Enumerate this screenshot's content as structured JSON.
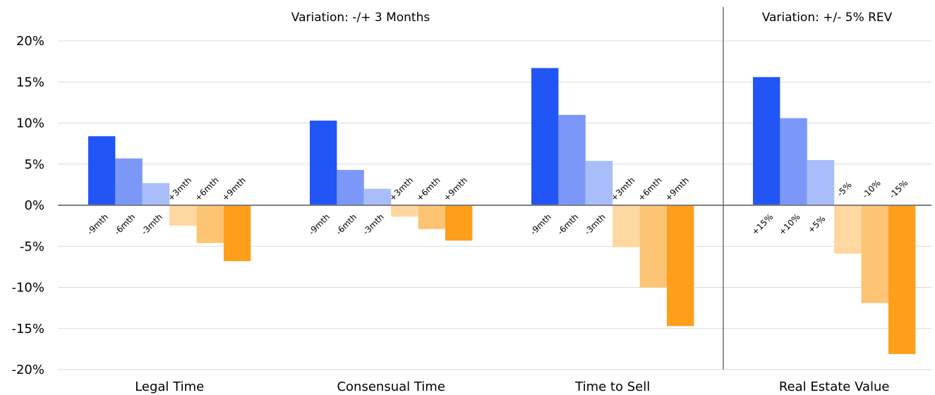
{
  "chart_data": {
    "type": "bar",
    "section_headers": [
      "Variation: -/+ 3 Months",
      "Variation: +/- 5% REV"
    ],
    "y_ticks": [
      "20%",
      "15%",
      "10%",
      "5%",
      "0%",
      "-5%",
      "-10%",
      "-15%",
      "-20%"
    ],
    "ylim": [
      -20,
      20
    ],
    "grid": true,
    "colors": [
      "#2155f5",
      "#7b98f9",
      "#a9bdfa",
      "#fed8a0",
      "#fdc474",
      "#fd9f1b"
    ],
    "groups": [
      {
        "category": "Legal Time",
        "bars": [
          {
            "label": "-9mth",
            "value": 8.4
          },
          {
            "label": "-6mth",
            "value": 5.7
          },
          {
            "label": "-3mth",
            "value": 2.7
          },
          {
            "label": "+3mth",
            "value": -2.5
          },
          {
            "label": "+6mth",
            "value": -4.6
          },
          {
            "label": "+9mth",
            "value": -6.8
          }
        ]
      },
      {
        "category": "Consensual Time",
        "bars": [
          {
            "label": "-9mth",
            "value": 10.3
          },
          {
            "label": "-6mth",
            "value": 4.3
          },
          {
            "label": "-3mth",
            "value": 2.0
          },
          {
            "label": "+3mth",
            "value": -1.4
          },
          {
            "label": "+6mth",
            "value": -2.9
          },
          {
            "label": "+9mth",
            "value": -4.3
          }
        ]
      },
      {
        "category": "Time to Sell",
        "bars": [
          {
            "label": "-9mth",
            "value": 16.7
          },
          {
            "label": "-6mth",
            "value": 11.0
          },
          {
            "label": "-3mth",
            "value": 5.4
          },
          {
            "label": "+3mth",
            "value": -5.1
          },
          {
            "label": "+6mth",
            "value": -10.0
          },
          {
            "label": "+9mth",
            "value": -14.7
          }
        ]
      },
      {
        "category": "Real Estate Value",
        "bars": [
          {
            "label": "+15%",
            "value": 15.6
          },
          {
            "label": "+10%",
            "value": 10.6
          },
          {
            "label": "+5%",
            "value": 5.5
          },
          {
            "label": "-5%",
            "value": -5.9
          },
          {
            "label": "-10%",
            "value": -11.9
          },
          {
            "label": "-15%",
            "value": -18.1
          }
        ]
      }
    ]
  }
}
